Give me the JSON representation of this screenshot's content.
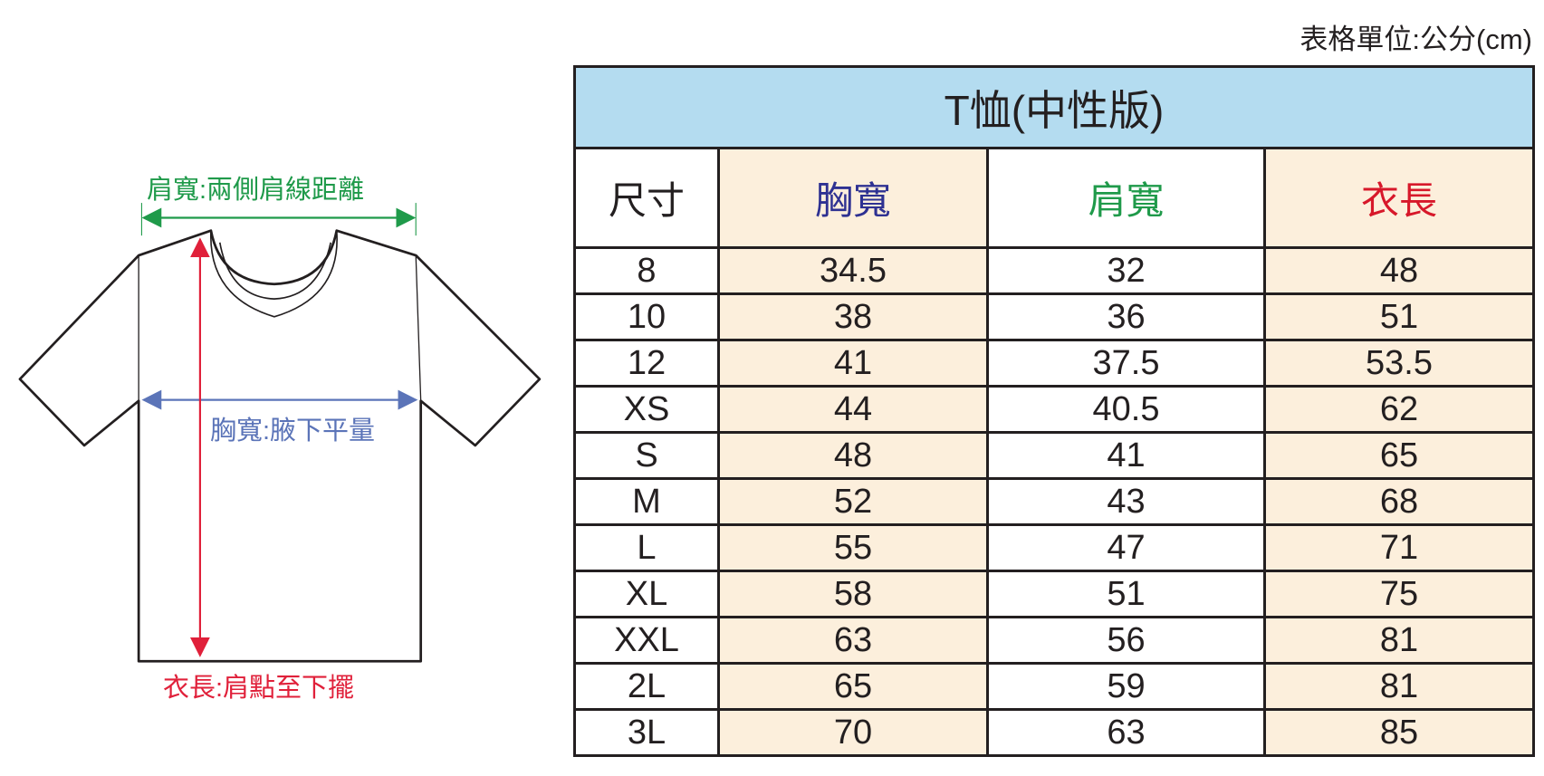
{
  "unit_note": "表格單位:公分(cm)",
  "diagram": {
    "shoulder_label": "肩寬:兩側肩線距離",
    "chest_label": "胸寬:腋下平量",
    "length_label": "衣長:肩點至下擺",
    "colors": {
      "shoulder": "#1f9a4a",
      "chest": "#5b74b8",
      "length": "#e0203a"
    }
  },
  "table": {
    "title": "T恤(中性版)",
    "headers": [
      "尺寸",
      "胸寬",
      "肩寬",
      "衣長"
    ],
    "rows": [
      [
        "8",
        "34.5",
        "32",
        "48"
      ],
      [
        "10",
        "38",
        "36",
        "51"
      ],
      [
        "12",
        "41",
        "37.5",
        "53.5"
      ],
      [
        "XS",
        "44",
        "40.5",
        "62"
      ],
      [
        "S",
        "48",
        "41",
        "65"
      ],
      [
        "M",
        "52",
        "43",
        "68"
      ],
      [
        "L",
        "55",
        "47",
        "71"
      ],
      [
        "XL",
        "58",
        "51",
        "75"
      ],
      [
        "XXL",
        "63",
        "56",
        "81"
      ],
      [
        "2L",
        "65",
        "59",
        "81"
      ],
      [
        "3L",
        "70",
        "63",
        "85"
      ]
    ],
    "colors": {
      "title_bg": "#b4dcf0",
      "cream": "#fcefdc",
      "chest": "#2e3192",
      "shoulder": "#1f9a4a",
      "length": "#d7182a"
    }
  }
}
